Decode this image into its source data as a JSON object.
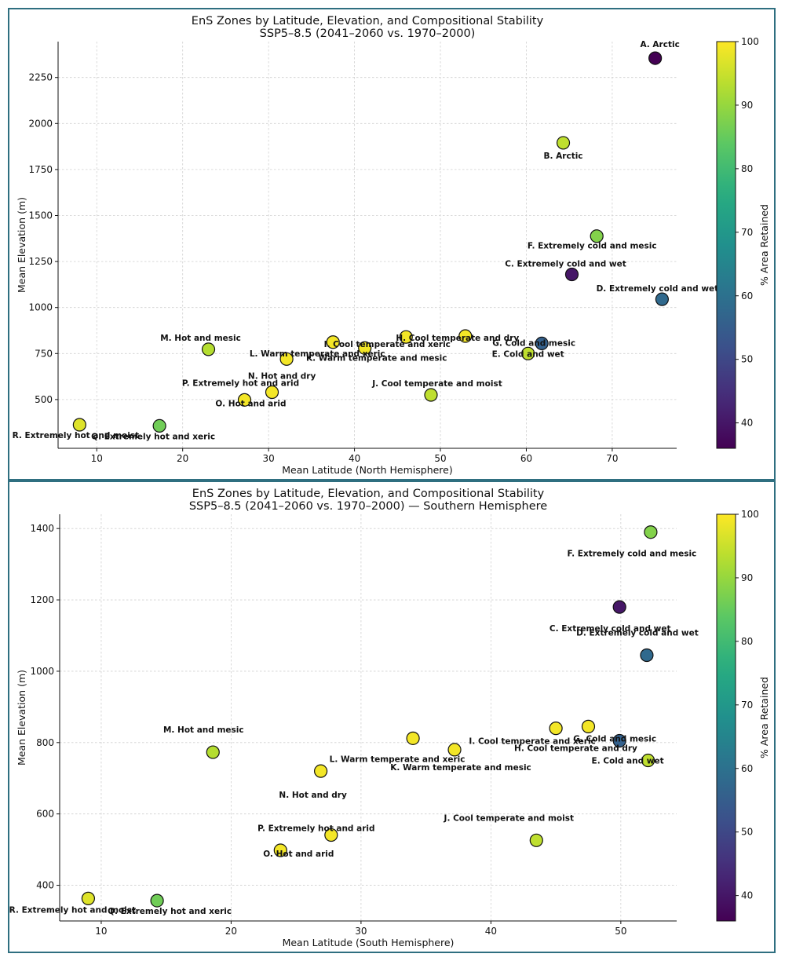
{
  "colorbar": {
    "label": "% Area Retained",
    "min": 36,
    "max": 100,
    "ticks": [
      40,
      50,
      60,
      70,
      80,
      90,
      100
    ]
  },
  "chart_data": [
    {
      "type": "scatter",
      "title": "EnS Zones by Latitude, Elevation, and Compositional Stability",
      "subtitle": "SSP5–8.5 (2041–2060 vs. 1970–2000)",
      "xlabel": "Mean Latitude (North Hemisphere)",
      "ylabel": "Mean Elevation (m)",
      "xlim": [
        5.5,
        77.5
      ],
      "ylim": [
        235,
        2445
      ],
      "xticks": [
        10,
        20,
        30,
        40,
        50,
        60,
        70
      ],
      "yticks": [
        500,
        750,
        1000,
        1250,
        1500,
        1750,
        2000,
        2250
      ],
      "grid": true,
      "color_label": "% Area Retained",
      "points": [
        {
          "label": "A. Arctic",
          "x": 75.0,
          "y": 2355,
          "c": 36
        },
        {
          "label": "B. Arctic",
          "x": 64.3,
          "y": 1895,
          "c": 94
        },
        {
          "label": "C. Extremely cold and wet",
          "x": 65.3,
          "y": 1180,
          "c": 40
        },
        {
          "label": "D. Extremely cold and wet",
          "x": 75.8,
          "y": 1045,
          "c": 58
        },
        {
          "label": "E. Cold and wet",
          "x": 60.2,
          "y": 750,
          "c": 94
        },
        {
          "label": "F. Extremely cold and mesic",
          "x": 68.2,
          "y": 1388,
          "c": 88
        },
        {
          "label": "G. Cold and mesic",
          "x": 61.8,
          "y": 805,
          "c": 56
        },
        {
          "label": "H. Cool temperate and dry",
          "x": 52.9,
          "y": 845,
          "c": 99
        },
        {
          "label": "I. Cool temperate and xeric",
          "x": 46.0,
          "y": 840,
          "c": 99
        },
        {
          "label": "J. Cool temperate and moist",
          "x": 48.9,
          "y": 525,
          "c": 94
        },
        {
          "label": "K. Warm temperate and mesic",
          "x": 41.2,
          "y": 780,
          "c": 99
        },
        {
          "label": "L. Warm temperate and xeric",
          "x": 37.5,
          "y": 812,
          "c": 99
        },
        {
          "label": "M. Hot and mesic",
          "x": 23.0,
          "y": 773,
          "c": 93
        },
        {
          "label": "N. Hot and dry",
          "x": 32.1,
          "y": 720,
          "c": 99
        },
        {
          "label": "O. Hot and arid",
          "x": 27.2,
          "y": 498,
          "c": 99
        },
        {
          "label": "P. Extremely hot and arid",
          "x": 30.4,
          "y": 540,
          "c": 99
        },
        {
          "label": "Q. Extremely hot and xeric",
          "x": 17.3,
          "y": 357,
          "c": 86
        },
        {
          "label": "R. Extremely hot and moist",
          "x": 8.0,
          "y": 363,
          "c": 97
        }
      ]
    },
    {
      "type": "scatter",
      "title": "EnS Zones by Latitude, Elevation, and Compositional Stability",
      "subtitle": "SSP5–8.5 (2041–2060 vs. 1970–2000) — Southern Hemisphere",
      "xlabel": "Mean Latitude (South Hemisphere)",
      "ylabel": "Mean Elevation (m)",
      "xlim": [
        6.8,
        54.3
      ],
      "ylim": [
        300,
        1440
      ],
      "xticks": [
        10,
        20,
        30,
        40,
        50
      ],
      "yticks": [
        400,
        600,
        800,
        1000,
        1200,
        1400
      ],
      "grid": true,
      "color_label": "% Area Retained",
      "points": [
        {
          "label": "C. Extremely cold and wet",
          "x": 49.9,
          "y": 1180,
          "c": 40
        },
        {
          "label": "D. Extremely cold and wet",
          "x": 52.0,
          "y": 1045,
          "c": 58
        },
        {
          "label": "E. Cold and wet",
          "x": 52.1,
          "y": 750,
          "c": 94
        },
        {
          "label": "F. Extremely cold and mesic",
          "x": 52.3,
          "y": 1390,
          "c": 88
        },
        {
          "label": "G. Cold and mesic",
          "x": 49.9,
          "y": 805,
          "c": 56
        },
        {
          "label": "H. Cool temperate and dry",
          "x": 47.5,
          "y": 845,
          "c": 99
        },
        {
          "label": "I. Cool temperate and xeric",
          "x": 45.0,
          "y": 840,
          "c": 99
        },
        {
          "label": "J. Cool temperate and moist",
          "x": 43.5,
          "y": 526,
          "c": 94
        },
        {
          "label": "K. Warm temperate and mesic",
          "x": 37.2,
          "y": 780,
          "c": 99
        },
        {
          "label": "L. Warm temperate and xeric",
          "x": 34.0,
          "y": 812,
          "c": 99
        },
        {
          "label": "M. Hot and mesic",
          "x": 18.6,
          "y": 773,
          "c": 93
        },
        {
          "label": "N. Hot and dry",
          "x": 26.9,
          "y": 720,
          "c": 99
        },
        {
          "label": "O. Hot and arid",
          "x": 23.8,
          "y": 498,
          "c": 99
        },
        {
          "label": "P. Extremely hot and arid",
          "x": 27.7,
          "y": 541,
          "c": 99
        },
        {
          "label": "Q. Extremely hot and xeric",
          "x": 14.3,
          "y": 357,
          "c": 86
        },
        {
          "label": "R. Extremely hot and moist",
          "x": 9.0,
          "y": 363,
          "c": 97
        }
      ]
    }
  ]
}
